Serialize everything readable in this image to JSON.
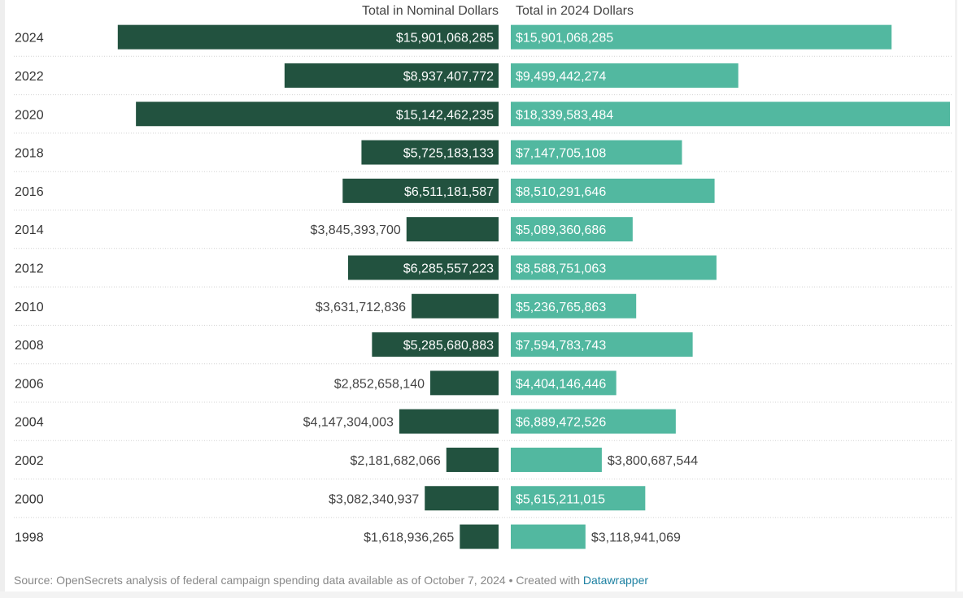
{
  "chart_data": {
    "type": "bar",
    "series": [
      {
        "name": "Total in Nominal Dollars",
        "values": [
          15901068285,
          8937407772,
          15142462235,
          5725183133,
          6511181587,
          3845393700,
          6285557223,
          3631712836,
          5285680883,
          2852658140,
          4147304003,
          2181682066,
          3082340937,
          1618936265
        ],
        "labels": [
          "$15,901,068,285",
          "$8,937,407,772",
          "$15,142,462,235",
          "$5,725,183,133",
          "$6,511,181,587",
          "$3,845,393,700",
          "$6,285,557,223",
          "$3,631,712,836",
          "$5,285,680,883",
          "$2,852,658,140",
          "$4,147,304,003",
          "$2,181,682,066",
          "$3,082,340,937",
          "$1,618,936,265"
        ],
        "color": "#22523f",
        "direction": "left"
      },
      {
        "name": "Total in 2024 Dollars",
        "values": [
          15901068285,
          9499442274,
          18339583484,
          7147705108,
          8510291646,
          5089360686,
          8588751063,
          5236765863,
          7594783743,
          4404146446,
          6889472526,
          3800687544,
          5615211015,
          3118941069
        ],
        "labels": [
          "$15,901,068,285",
          "$9,499,442,274",
          "$18,339,583,484",
          "$7,147,705,108",
          "$8,510,291,646",
          "$5,089,360,686",
          "$8,588,751,063",
          "$5,236,765,863",
          "$7,594,783,743",
          "$4,404,146,446",
          "$6,889,472,526",
          "$3,800,687,544",
          "$5,615,211,015",
          "$3,118,941,069"
        ],
        "color": "#52b8a0",
        "direction": "right"
      }
    ],
    "categories": [
      "2024",
      "2022",
      "2020",
      "2018",
      "2016",
      "2014",
      "2012",
      "2010",
      "2008",
      "2006",
      "2004",
      "2002",
      "2000",
      "1998"
    ],
    "grid": false
  },
  "footer": {
    "source_text": "Source: OpenSecrets analysis of federal campaign spending data available as of October 7, 2024 • Created with ",
    "link_text": "Datawrapper"
  }
}
